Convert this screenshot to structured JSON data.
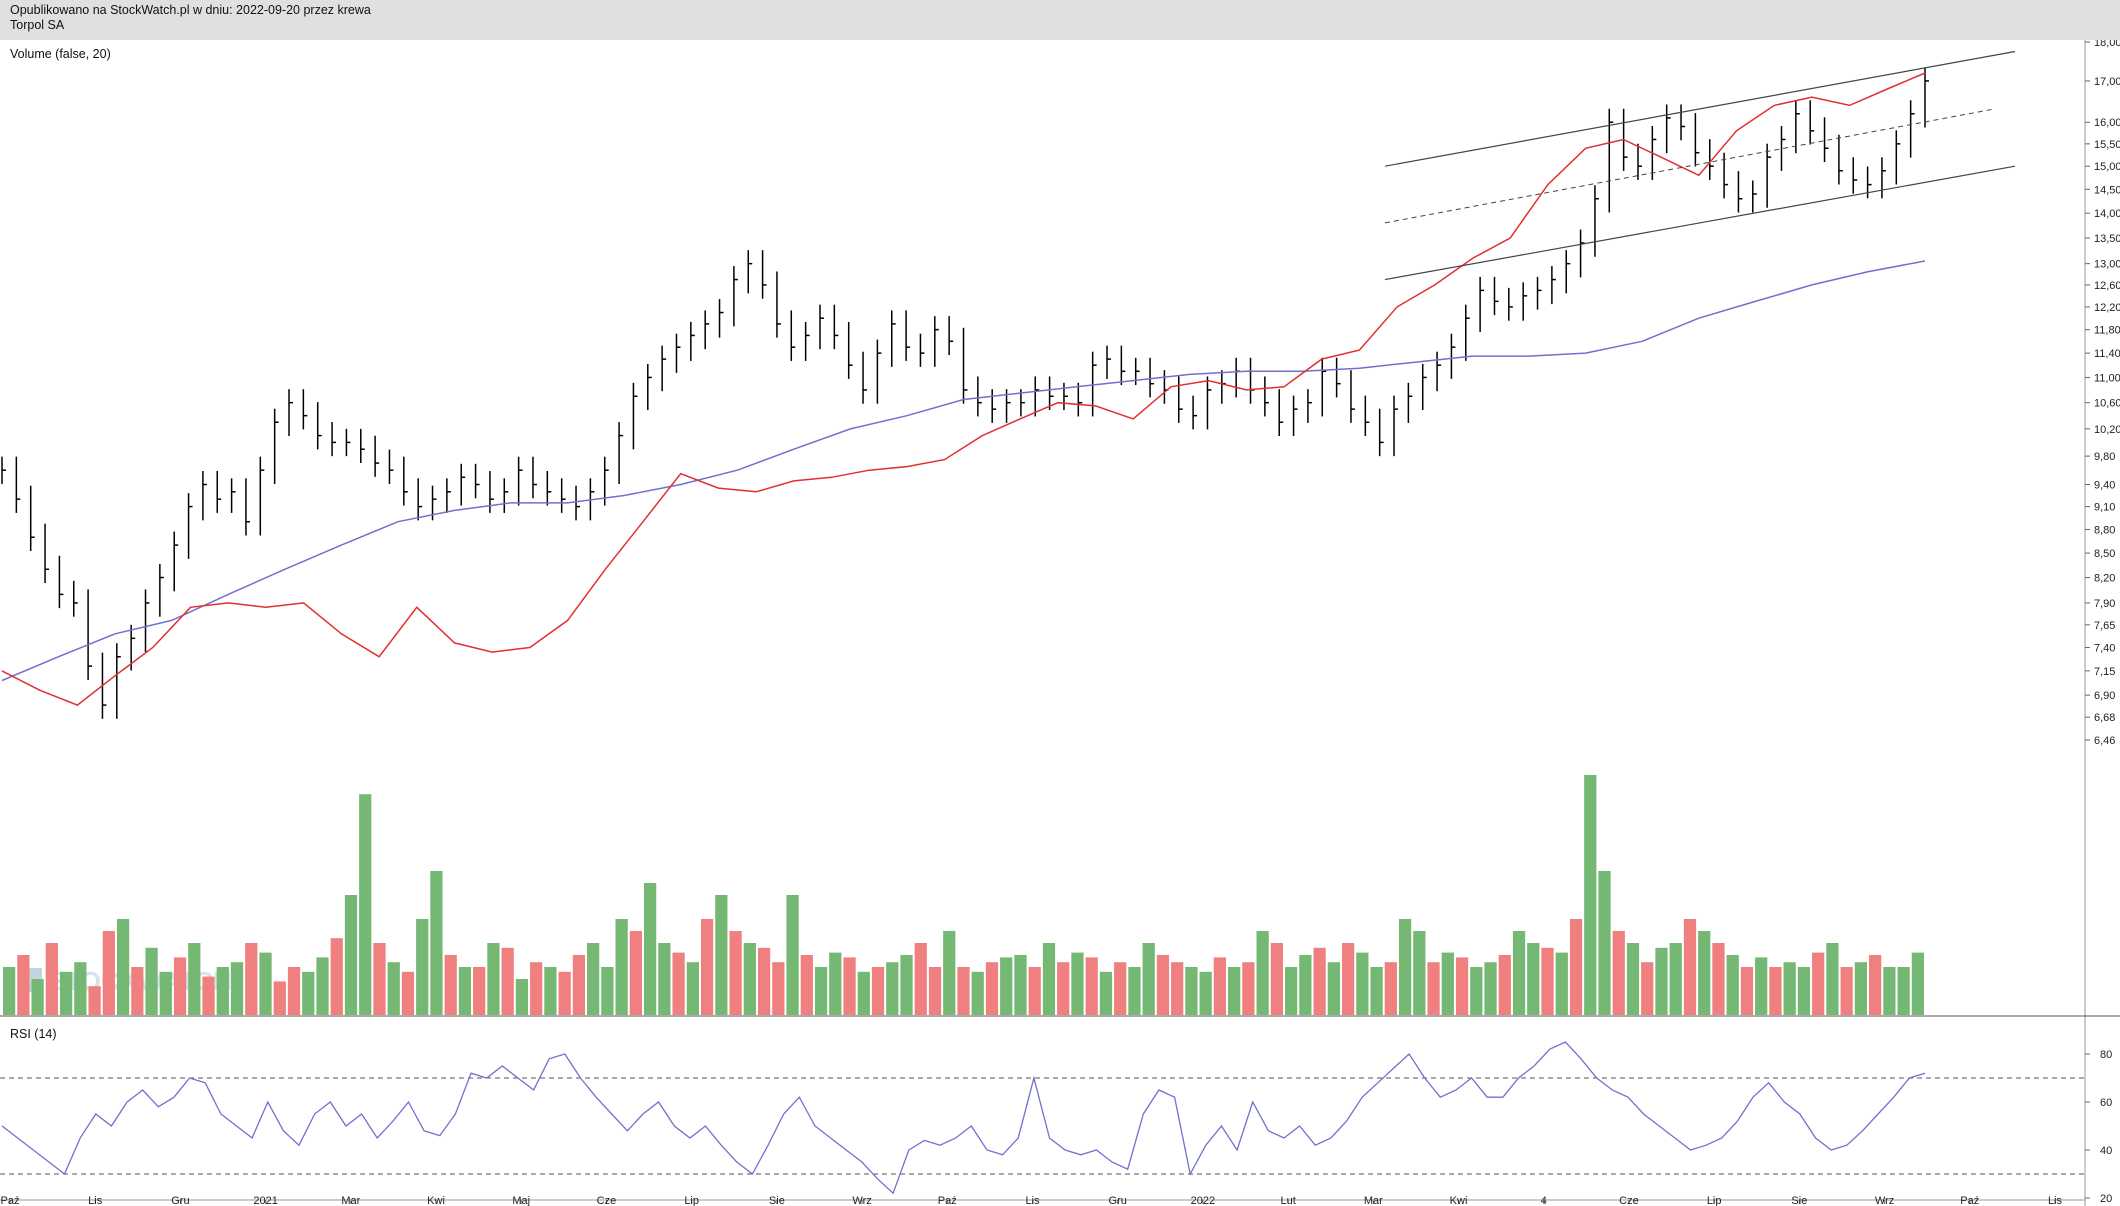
{
  "header": {
    "published": "Opublikowano na StockWatch.pl w dniu: 2022-09-20 przez krewa",
    "symbol": "Torpol SA"
  },
  "watermark": "STOCKWATCH",
  "chart_data": {
    "type": "line",
    "instrument": "Torpol SA",
    "price_panel": {
      "label": "Volume (false, 20)",
      "y_ticks": [
        "18,00",
        "17,00",
        "16,00",
        "15,50",
        "15,00",
        "14,50",
        "14,00",
        "13,50",
        "13,00",
        "12,60",
        "12,20",
        "11,80",
        "11,40",
        "11,00",
        "10,60",
        "10,20",
        "9,80",
        "9,40",
        "9,10",
        "8,80",
        "8,50",
        "8,20",
        "7,90",
        "7,65",
        "7,40",
        "7,15",
        "6,90",
        "6,68",
        "6,46"
      ],
      "scale": "log",
      "close": [
        9.6,
        9.2,
        8.7,
        8.3,
        8.0,
        7.9,
        7.2,
        6.8,
        7.3,
        7.5,
        7.9,
        8.2,
        8.6,
        9.1,
        9.4,
        9.2,
        9.3,
        8.9,
        9.6,
        10.3,
        10.6,
        10.4,
        10.1,
        10.0,
        10.0,
        9.9,
        9.7,
        9.6,
        9.3,
        9.1,
        9.2,
        9.3,
        9.5,
        9.4,
        9.2,
        9.3,
        9.6,
        9.4,
        9.3,
        9.2,
        9.1,
        9.3,
        9.6,
        10.1,
        10.7,
        11.0,
        11.3,
        11.5,
        11.7,
        11.9,
        12.1,
        12.7,
        13.0,
        12.6,
        11.9,
        11.5,
        11.7,
        12.0,
        11.7,
        11.2,
        10.8,
        11.4,
        11.9,
        11.5,
        11.4,
        11.8,
        11.6,
        10.8,
        10.6,
        10.5,
        10.6,
        10.6,
        10.8,
        10.7,
        10.7,
        10.6,
        11.2,
        11.3,
        11.1,
        11.1,
        10.9,
        10.8,
        10.5,
        10.4,
        10.8,
        10.9,
        11.1,
        10.8,
        10.6,
        10.3,
        10.5,
        10.6,
        11.1,
        10.9,
        10.5,
        10.3,
        10.0,
        10.5,
        10.7,
        11.0,
        11.2,
        11.5,
        12.0,
        12.5,
        12.3,
        12.2,
        12.4,
        12.5,
        12.7,
        13.0,
        13.4,
        14.3,
        16.0,
        15.2,
        15.0,
        15.6,
        16.1,
        15.9,
        15.3,
        15.0,
        14.6,
        14.3,
        14.4,
        15.2,
        15.6,
        16.2,
        15.8,
        15.4,
        14.9,
        14.7,
        14.6,
        14.9,
        15.5,
        16.2,
        17.0
      ],
      "ma_blue": [
        7.05,
        7.3,
        7.55,
        7.7,
        8.0,
        8.3,
        8.6,
        8.9,
        9.05,
        9.15,
        9.15,
        9.25,
        9.4,
        9.6,
        9.9,
        10.2,
        10.4,
        10.65,
        10.75,
        10.85,
        10.95,
        11.05,
        11.1,
        11.1,
        11.15,
        11.25,
        11.35,
        11.35,
        11.4,
        11.6,
        12.0,
        12.3,
        12.6,
        12.85,
        13.05
      ],
      "ma_red": [
        7.15,
        6.95,
        6.8,
        7.1,
        7.4,
        7.85,
        7.9,
        7.85,
        7.9,
        7.55,
        7.3,
        7.85,
        7.45,
        7.35,
        7.4,
        7.7,
        8.3,
        8.9,
        9.55,
        9.35,
        9.3,
        9.45,
        9.5,
        9.6,
        9.65,
        9.75,
        10.1,
        10.35,
        10.6,
        10.55,
        10.35,
        10.85,
        10.95,
        10.8,
        10.85,
        11.3,
        11.45,
        12.2,
        12.6,
        13.1,
        13.5,
        14.6,
        15.4,
        15.6,
        15.2,
        14.8,
        15.8,
        16.4,
        16.6,
        16.4,
        16.8,
        17.2
      ],
      "channel_upper": [
        [
          15.0,
          17.75
        ]
      ],
      "channel_lower": [
        [
          12.7,
          15.0
        ]
      ]
    },
    "volume_panel": {
      "values": [
        0.2,
        0.25,
        0.15,
        0.3,
        0.18,
        0.22,
        0.12,
        0.35,
        0.4,
        0.2,
        0.28,
        0.18,
        0.24,
        0.3,
        0.16,
        0.2,
        0.22,
        0.3,
        0.26,
        0.14,
        0.2,
        0.18,
        0.24,
        0.32,
        0.5,
        0.92,
        0.3,
        0.22,
        0.18,
        0.4,
        0.6,
        0.25,
        0.2,
        0.2,
        0.3,
        0.28,
        0.15,
        0.22,
        0.2,
        0.18,
        0.25,
        0.3,
        0.2,
        0.4,
        0.35,
        0.55,
        0.3,
        0.26,
        0.22,
        0.4,
        0.5,
        0.35,
        0.3,
        0.28,
        0.22,
        0.5,
        0.25,
        0.2,
        0.26,
        0.24,
        0.18,
        0.2,
        0.22,
        0.25,
        0.3,
        0.2,
        0.35,
        0.2,
        0.18,
        0.22,
        0.24,
        0.25,
        0.2,
        0.3,
        0.22,
        0.26,
        0.24,
        0.18,
        0.22,
        0.2,
        0.3,
        0.25,
        0.22,
        0.2,
        0.18,
        0.24,
        0.2,
        0.22,
        0.35,
        0.3,
        0.2,
        0.25,
        0.28,
        0.22,
        0.3,
        0.26,
        0.2,
        0.22,
        0.4,
        0.35,
        0.22,
        0.26,
        0.24,
        0.2,
        0.22,
        0.25,
        0.35,
        0.3,
        0.28,
        0.26,
        0.4,
        1.0,
        0.6,
        0.35,
        0.3,
        0.22,
        0.28,
        0.3,
        0.4,
        0.35,
        0.3,
        0.25,
        0.2,
        0.24,
        0.2,
        0.22,
        0.2,
        0.26,
        0.3,
        0.2,
        0.22,
        0.25,
        0.2,
        0.2,
        0.26
      ],
      "up": [
        true,
        false,
        true,
        false,
        true,
        true,
        false,
        false,
        true,
        false,
        true,
        true,
        false,
        true,
        false,
        true,
        true,
        false,
        true,
        false,
        false,
        true,
        true,
        false,
        true,
        true,
        false,
        true,
        false,
        true,
        true,
        false,
        true,
        false,
        true,
        false,
        true,
        false,
        true,
        false,
        false,
        true,
        true,
        true,
        false,
        true,
        true,
        false,
        true,
        false,
        true,
        false,
        true,
        false,
        false,
        true,
        false,
        true,
        true,
        false,
        true,
        false,
        true,
        true,
        false,
        false,
        true,
        false,
        true,
        false,
        true,
        true,
        false,
        true,
        false,
        true,
        false,
        true,
        false,
        true,
        true,
        false,
        false,
        true,
        true,
        false,
        true,
        false,
        true,
        false,
        true,
        true,
        false,
        true,
        false,
        true,
        true,
        false,
        true,
        true,
        false,
        true,
        false,
        true,
        true,
        false,
        true,
        true,
        false,
        true,
        false,
        true,
        true,
        false,
        true,
        false,
        true,
        true,
        false,
        true,
        false,
        true,
        false,
        true,
        false,
        true,
        true,
        false,
        true,
        false,
        true,
        false,
        true,
        true,
        true
      ]
    },
    "rsi_panel": {
      "label": "RSI (14)",
      "y_ticks": [
        "80",
        "60",
        "40",
        "20"
      ],
      "levels": [
        70,
        30
      ],
      "values": [
        50,
        45,
        40,
        35,
        30,
        45,
        55,
        50,
        60,
        65,
        58,
        62,
        70,
        68,
        55,
        50,
        45,
        60,
        48,
        42,
        55,
        60,
        50,
        55,
        45,
        52,
        60,
        48,
        46,
        55,
        72,
        70,
        75,
        70,
        65,
        78,
        80,
        70,
        62,
        55,
        48,
        55,
        60,
        50,
        45,
        50,
        42,
        35,
        30,
        42,
        55,
        62,
        50,
        45,
        40,
        35,
        28,
        22,
        40,
        44,
        42,
        45,
        50,
        40,
        38,
        45,
        70,
        45,
        40,
        38,
        40,
        35,
        32,
        55,
        65,
        62,
        30,
        42,
        50,
        40,
        60,
        48,
        45,
        50,
        42,
        45,
        52,
        62,
        68,
        74,
        80,
        70,
        62,
        65,
        70,
        62,
        62,
        70,
        75,
        82,
        85,
        78,
        70,
        65,
        62,
        55,
        50,
        45,
        40,
        42,
        45,
        52,
        62,
        68,
        60,
        55,
        45,
        40,
        42,
        48,
        55,
        62,
        70,
        72
      ]
    },
    "x_ticks": [
      "Paź",
      "Lis",
      "Gru",
      "2021",
      "Mar",
      "Kwi",
      "Maj",
      "Cze",
      "Lip",
      "Sie",
      "Wrz",
      "Paź",
      "Lis",
      "Gru",
      "2022",
      "Lut",
      "Mar",
      "Kwi",
      "4",
      "Cze",
      "Lip",
      "Sie",
      "Wrz",
      "Paź",
      "Lis"
    ],
    "colors": {
      "up": "#74b874",
      "down": "#f08080",
      "red_ma": "#e03030",
      "blue_ma": "#7070d0",
      "rsi": "#7070d0",
      "candle": "#000000",
      "channel": "#444444"
    }
  }
}
